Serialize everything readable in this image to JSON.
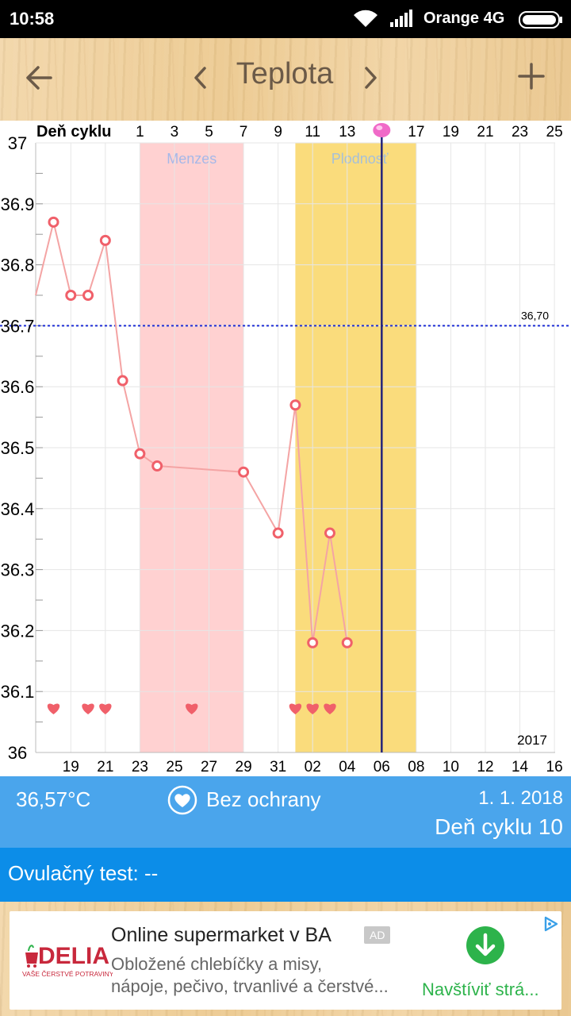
{
  "status_bar": {
    "time": "10:58",
    "carrier": "Orange 4G"
  },
  "app_bar": {
    "title": "Teplota"
  },
  "icons": {
    "back": "arrow-left-icon",
    "prev": "chevron-left-icon",
    "next": "chevron-right-icon",
    "add": "plus-icon",
    "wifi": "wifi-icon",
    "signal": "signal-icon",
    "battery": "battery-icon",
    "ovulation_marker": "pink-dot-icon",
    "intercourse": "heart-icon"
  },
  "colors": {
    "menses_band": "#ffd1d1",
    "fertile_band": "#fadc7c",
    "temp_line": "#f4a4a4",
    "point": "#f0606a",
    "coverline": "#1f2fd6",
    "today_line": "#24247a",
    "info_panel": "#4aa5ec",
    "ovulation_bar": "#0c8de8"
  },
  "chart_data": {
    "type": "line",
    "title": "",
    "top_axis_label": "Deň cyklu",
    "top_ticks": [
      "1",
      "3",
      "5",
      "7",
      "9",
      "11",
      "13",
      "17",
      "19",
      "21",
      "23",
      "25"
    ],
    "bottom_ticks": [
      "19",
      "21",
      "23",
      "25",
      "27",
      "29",
      "31",
      "02",
      "04",
      "06",
      "08",
      "10",
      "12",
      "14",
      "16"
    ],
    "year_label": "2017",
    "ylim": [
      36.0,
      37.0
    ],
    "y_ticks": [
      "37",
      "36.9",
      "36.8",
      "36.7",
      "36.6",
      "36.5",
      "36.4",
      "36.3",
      "36.2",
      "36.1",
      "36"
    ],
    "coverline": {
      "value": 36.7,
      "label": "36,70"
    },
    "bands": [
      {
        "label": "Menzes",
        "from_cycle_day": 1,
        "to_cycle_day": 7
      },
      {
        "label": "Plodnosť",
        "from_cycle_day": 10,
        "to_cycle_day": 17
      }
    ],
    "today_cycle_day": 15,
    "series": [
      {
        "values": [
          {
            "x": "18",
            "y": 36.87
          },
          {
            "x": "19",
            "y": 36.75
          },
          {
            "x": "20",
            "y": 36.75
          },
          {
            "x": "21",
            "y": 36.84
          },
          {
            "x": "22",
            "y": 36.61
          },
          {
            "x": "23",
            "y": 36.49
          },
          {
            "x": "24",
            "y": 36.47
          },
          {
            "x": "29",
            "y": 36.46
          },
          {
            "x": "31",
            "y": 36.36
          },
          {
            "x": "01",
            "y": 36.57
          },
          {
            "x": "02",
            "y": 36.18
          },
          {
            "x": "03",
            "y": 36.36
          },
          {
            "x": "04",
            "y": 36.18
          }
        ]
      }
    ],
    "intercourse_days": [
      "18",
      "20",
      "21",
      "26",
      "01",
      "02",
      "03"
    ]
  },
  "info": {
    "temperature": "36,57°C",
    "protection": "Bez ochrany",
    "date": "1. 1. 2018",
    "cycle_day": "Deň cyklu 10"
  },
  "ovulation_test": {
    "label": "Ovulačný test: --"
  },
  "ad": {
    "logo": "DELIA",
    "logo_tagline": "VAŠE ČERSTVÉ POTRAVINY",
    "title": "Online supermarket v BA",
    "badge": "AD",
    "desc_line1": "Obložené chlebíčky a misy,",
    "desc_line2": "nápoje, pečivo, trvanlivé a čerstvé...",
    "cta": "Navštíviť strá..."
  }
}
